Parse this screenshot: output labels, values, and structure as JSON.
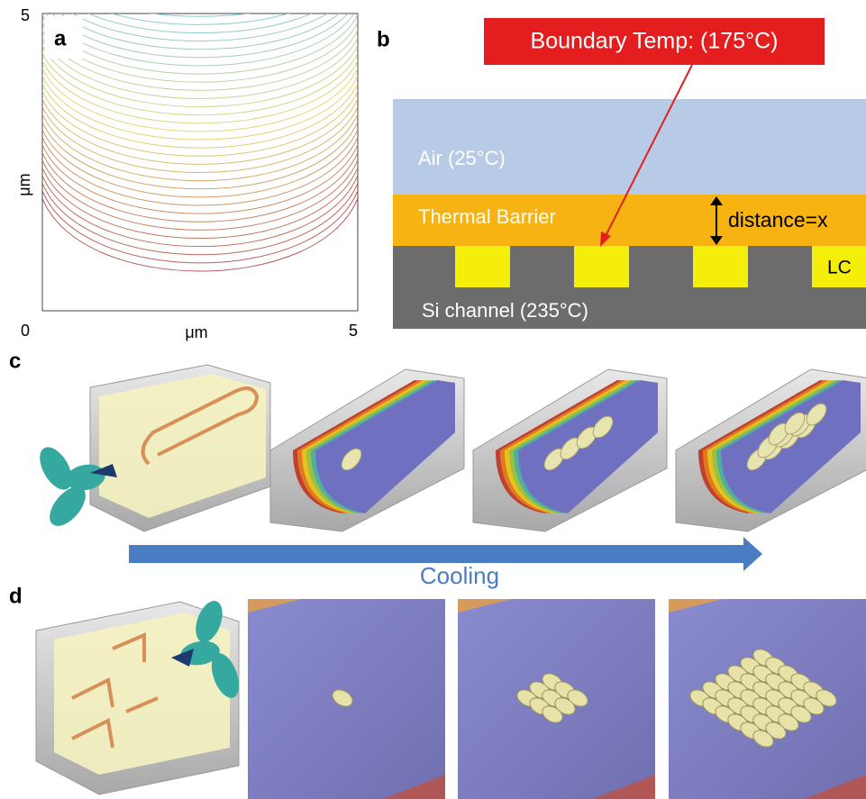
{
  "panel_a": {
    "label": "a",
    "y_top_tick": "5",
    "origin_tick": "0",
    "x_right_tick": "5",
    "x_axis_label": "μm",
    "y_axis_label": "μm"
  },
  "panel_b": {
    "label": "b",
    "boundary": "Boundary Temp: (175°C)",
    "air": "Air (25°C)",
    "barrier": "Thermal Barrier",
    "distance": "distance=x",
    "lc": "LC",
    "channel": "Si channel (235°C)"
  },
  "panel_c": {
    "label": "c",
    "arrow_label": "Cooling"
  },
  "panel_d": {
    "label": "d"
  }
}
